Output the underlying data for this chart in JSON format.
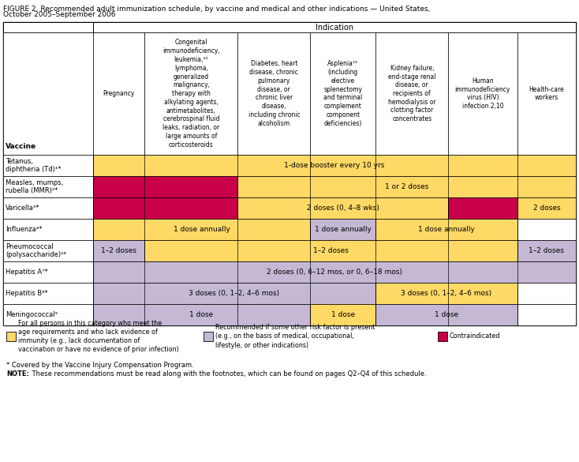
{
  "title_line1": "FIGURE 2. Recommended adult immunization schedule, by vaccine and medical and other indications — United States,",
  "title_line2": "October 2005–September 2006",
  "colors": {
    "yellow": "#FFD966",
    "purple": "#C4B8D5",
    "pink": "#C8004A",
    "white": "#FFFFFF",
    "border": "#000000"
  },
  "col_headers": [
    "Vaccine",
    "Pregnancy",
    "Congenital\nimmunodeficiency,\nleukemia,¹⁰\nlymphoma,\ngeneralized\nmalignancy,\ntherapy with\nalkylating agents,\nantimetabolites,\ncerebrospinal fluid\nleaks, radiation, or\nlarge amounts of\ncorticosteroids",
    "Diabetes, heart\ndisease, chronic\npulmonary\ndisease, or\nchronic liver\ndisease,\nincluding chronic\nalcoholism",
    "Asplenia¹⁰\n(including\nelective\nsplenectomy\nand terminal\ncomplement\ncomponent\ndeficiencies)",
    "Kidney failure,\nend-stage renal\ndisease, or\nrecipients of\nhemodialysis or\nclotting factor\nconcentrates",
    "Human\nimmunodeficiency\nvirus (HIV)\ninfection 2,10",
    "Health-care\nworkers"
  ],
  "indication_header": "Indication",
  "rows": [
    {
      "vaccine": "Tetanus,\ndiphtheria (Td)¹*",
      "cells": [
        {
          "cols": [
            1,
            2,
            3,
            4,
            5,
            6,
            7
          ],
          "text": "1-dose booster every 10 yrs",
          "color": "yellow"
        }
      ]
    },
    {
      "vaccine": "Measles, mumps,\nrubella (MMR)²*",
      "cells": [
        {
          "cols": [
            1,
            2
          ],
          "text": "",
          "color": "pink"
        },
        {
          "cols": [
            3,
            4,
            5,
            6,
            7
          ],
          "text": "1 or 2 doses",
          "color": "yellow"
        }
      ]
    },
    {
      "vaccine": "Varicella³*",
      "cells": [
        {
          "cols": [
            1,
            2
          ],
          "text": "",
          "color": "pink"
        },
        {
          "cols": [
            3,
            4,
            5
          ],
          "text": "2 doses (0, 4–8 wks)",
          "color": "yellow"
        },
        {
          "cols": [
            6
          ],
          "text": "",
          "color": "pink"
        },
        {
          "cols": [
            7
          ],
          "text": "2 doses",
          "color": "yellow"
        }
      ]
    },
    {
      "vaccine": "Influenza⁴*",
      "cells": [
        {
          "cols": [
            1,
            2,
            3
          ],
          "text": "1 dose annually",
          "color": "yellow"
        },
        {
          "cols": [
            4
          ],
          "text": "1 dose annually",
          "color": "purple"
        },
        {
          "cols": [
            5,
            6
          ],
          "text": "1 dose annually",
          "color": "yellow"
        },
        {
          "cols": [
            7
          ],
          "text": "",
          "color": "white"
        }
      ]
    },
    {
      "vaccine": "Pneumococcal\n(polysaccharide)⁵⁸",
      "cells": [
        {
          "cols": [
            1
          ],
          "text": "1–2 doses",
          "color": "purple"
        },
        {
          "cols": [
            2,
            3,
            4,
            5,
            6
          ],
          "text": "1–2 doses",
          "color": "yellow"
        },
        {
          "cols": [
            7
          ],
          "text": "1–2 doses",
          "color": "purple"
        }
      ]
    },
    {
      "vaccine": "Hepatitis A⁷*",
      "cells": [
        {
          "cols": [
            1,
            2,
            3,
            4,
            5,
            6,
            7
          ],
          "text": "2 doses (0, 6–12 mos, or 0, 6–18 mos)",
          "color": "purple"
        }
      ]
    },
    {
      "vaccine": "Hepatitis B⁸*",
      "cells": [
        {
          "cols": [
            1,
            2,
            3,
            4
          ],
          "text": "3 doses (0, 1–2, 4–6 mos)",
          "color": "purple"
        },
        {
          "cols": [
            5,
            6
          ],
          "text": "3 doses (0, 1–2, 4–6 mos)",
          "color": "yellow"
        },
        {
          "cols": [
            7
          ],
          "text": "",
          "color": "white"
        }
      ]
    },
    {
      "vaccine": "Meningococcal⁹",
      "cells": [
        {
          "cols": [
            1,
            2,
            3
          ],
          "text": "1 dose",
          "color": "purple"
        },
        {
          "cols": [
            4
          ],
          "text": "1 dose",
          "color": "yellow"
        },
        {
          "cols": [
            5,
            6
          ],
          "text": "1 dose",
          "color": "purple"
        },
        {
          "cols": [
            7
          ],
          "text": "",
          "color": "white"
        }
      ]
    }
  ],
  "legend": [
    {
      "color": "yellow",
      "text": "For all persons in this category who meet the\nage requirements and who lack evidence of\nimmunity (e.g., lack documentation of\nvaccination or have no evidence of prior infection)"
    },
    {
      "color": "purple",
      "text": "Recommended if some other risk factor is present\n(e.g., on the basis of medical, occupational,\nlifestyle, or other indications)"
    },
    {
      "color": "pink",
      "text": "Contraindicated"
    }
  ],
  "footnote1": "* Covered by the Vaccine Injury Compensation Program.",
  "footnote2": "NOTE: These recommendations must be read along with the footnotes, which can be found on pages Q2–Q4 of this schedule."
}
